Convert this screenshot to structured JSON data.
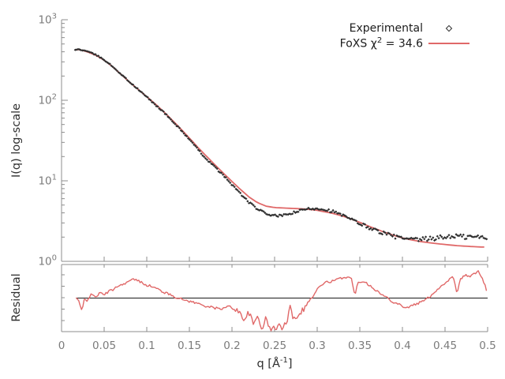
{
  "figure": {
    "background": "#ffffff",
    "axis_color": "#8c8c8c",
    "tick_label_color": "#7b7b7b",
    "reference_line_color": "#1a1a1a",
    "experimental_color": "#2e2e2e",
    "fit_color": "#e06868"
  },
  "legend": {
    "experimental": {
      "label": "Experimental",
      "marker": "diamond-icon"
    },
    "foxs": {
      "label_prefix": "FoXS χ",
      "label_sup": "2",
      "label_suffix": " = 34.6",
      "marker": "red-line-sample"
    }
  },
  "main_plot": {
    "ylabel": "I(q) log-scale",
    "ytick_labels": [
      {
        "base": "10",
        "exp": "3",
        "value": 1000
      },
      {
        "base": "10",
        "exp": "2",
        "value": 100
      },
      {
        "base": "10",
        "exp": "1",
        "value": 10
      },
      {
        "base": "10",
        "exp": "0",
        "value": 1
      }
    ]
  },
  "residual_plot": {
    "ylabel": "Residual",
    "reference_value": 1.0
  },
  "xaxis": {
    "label_prefix": "q [Å",
    "label_sup": "-1",
    "label_suffix": "]",
    "tick_labels": [
      "0",
      "0.05",
      "0.1",
      "0.15",
      "0.2",
      "0.25",
      "0.3",
      "0.35",
      "0.4",
      "0.45",
      "0.5"
    ]
  },
  "chart_data": {
    "type": "line",
    "xlabel": "q [Å⁻¹]",
    "xlim": [
      0,
      0.5
    ],
    "xticks": [
      0,
      0.05,
      0.1,
      0.15,
      0.2,
      0.25,
      0.3,
      0.35,
      0.4,
      0.45,
      0.5
    ],
    "grid": false,
    "legend_position": "top-right",
    "panels": [
      {
        "name": "main",
        "ylabel": "I(q) log-scale",
        "yscale": "log",
        "ylim": [
          1,
          1000
        ],
        "series": [
          {
            "name": "Experimental",
            "type": "scatter",
            "marker": "diamond",
            "color": "#2e2e2e",
            "x": [
              0.016,
              0.02,
              0.025,
              0.03,
              0.04,
              0.05,
              0.06,
              0.07,
              0.08,
              0.09,
              0.1,
              0.11,
              0.12,
              0.13,
              0.14,
              0.15,
              0.16,
              0.17,
              0.18,
              0.19,
              0.2,
              0.21,
              0.22,
              0.23,
              0.24,
              0.25,
              0.26,
              0.27,
              0.28,
              0.29,
              0.3,
              0.31,
              0.32,
              0.33,
              0.34,
              0.35,
              0.36,
              0.37,
              0.38,
              0.39,
              0.4,
              0.41,
              0.42,
              0.43,
              0.44,
              0.45,
              0.46,
              0.47,
              0.48,
              0.49,
              0.5
            ],
            "y": [
              420,
              430,
              418,
              405,
              368,
              318,
              262,
              210,
              168,
              136,
              110,
              88,
              71,
              55,
              43,
              32.5,
              24.5,
              18.6,
              14.8,
              11.6,
              9.0,
              6.9,
              5.4,
              4.45,
              3.9,
              3.68,
              3.7,
              3.95,
              4.25,
              4.5,
              4.55,
              4.4,
              4.1,
              3.7,
              3.3,
              2.95,
              2.65,
              2.4,
              2.2,
              2.05,
              1.92,
              1.85,
              1.86,
              1.9,
              1.95,
              2.0,
              2.08,
              2.02,
              2.0,
              2.0,
              1.95
            ]
          },
          {
            "name": "FoXS",
            "chi2": 34.6,
            "type": "line",
            "color": "#e06868",
            "x": [
              0.016,
              0.02,
              0.025,
              0.03,
              0.04,
              0.05,
              0.06,
              0.07,
              0.08,
              0.09,
              0.1,
              0.11,
              0.12,
              0.13,
              0.14,
              0.15,
              0.16,
              0.17,
              0.18,
              0.19,
              0.2,
              0.21,
              0.22,
              0.23,
              0.24,
              0.25,
              0.26,
              0.27,
              0.28,
              0.29,
              0.3,
              0.31,
              0.32,
              0.33,
              0.34,
              0.35,
              0.36,
              0.37,
              0.38,
              0.39,
              0.4,
              0.41,
              0.42,
              0.43,
              0.44,
              0.45,
              0.46,
              0.47,
              0.48,
              0.49,
              0.5
            ],
            "y": [
              424,
              426,
              415,
              400,
              363,
              315,
              260,
              209,
              167,
              136,
              111,
              90,
              72,
              56.5,
              44,
              34,
              26,
              20.2,
              15.8,
              12.4,
              9.8,
              7.8,
              6.3,
              5.35,
              4.85,
              4.65,
              4.6,
              4.55,
              4.5,
              4.42,
              4.3,
              4.1,
              3.9,
              3.65,
              3.35,
              3.05,
              2.75,
              2.5,
              2.28,
              2.1,
              1.95,
              1.85,
              1.77,
              1.71,
              1.66,
              1.62,
              1.58,
              1.55,
              1.53,
              1.51,
              1.5
            ]
          }
        ]
      },
      {
        "name": "residual",
        "ylabel": "Residual",
        "yscale": "log",
        "ylim": [
          0.316,
          3.16
        ],
        "reference_line": 1.0,
        "series": [
          {
            "name": "Residual",
            "type": "line",
            "color": "#e06868",
            "x": [
              0.018,
              0.021,
              0.024,
              0.027,
              0.03,
              0.035,
              0.04,
              0.045,
              0.05,
              0.055,
              0.06,
              0.065,
              0.07,
              0.075,
              0.08,
              0.085,
              0.09,
              0.095,
              0.1,
              0.105,
              0.11,
              0.115,
              0.12,
              0.125,
              0.13,
              0.135,
              0.14,
              0.15,
              0.16,
              0.17,
              0.18,
              0.19,
              0.196,
              0.2,
              0.205,
              0.21,
              0.215,
              0.22,
              0.225,
              0.23,
              0.235,
              0.24,
              0.245,
              0.25,
              0.255,
              0.26,
              0.265,
              0.268,
              0.272,
              0.276,
              0.28,
              0.285,
              0.29,
              0.295,
              0.3,
              0.305,
              0.31,
              0.315,
              0.32,
              0.325,
              0.33,
              0.335,
              0.34,
              0.344,
              0.348,
              0.355,
              0.36,
              0.365,
              0.37,
              0.375,
              0.38,
              0.385,
              0.39,
              0.395,
              0.4,
              0.405,
              0.41,
              0.415,
              0.42,
              0.425,
              0.43,
              0.435,
              0.44,
              0.445,
              0.45,
              0.455,
              0.46,
              0.464,
              0.468,
              0.475,
              0.48,
              0.485,
              0.49,
              0.495,
              0.5
            ],
            "y": [
              1.0,
              0.82,
              0.62,
              1.02,
              0.95,
              1.12,
              1.05,
              1.18,
              1.12,
              1.25,
              1.32,
              1.5,
              1.55,
              1.68,
              1.78,
              1.9,
              1.78,
              1.68,
              1.55,
              1.5,
              1.4,
              1.32,
              1.22,
              1.15,
              1.1,
              1.02,
              0.97,
              0.9,
              0.83,
              0.76,
              0.71,
              0.7,
              0.76,
              0.72,
              0.65,
              0.6,
              0.48,
              0.62,
              0.4,
              0.55,
              0.36,
              0.5,
              0.34,
              0.36,
              0.4,
              0.345,
              0.5,
              0.86,
              0.48,
              0.55,
              0.62,
              0.72,
              0.9,
              1.05,
              1.35,
              1.55,
              1.7,
              1.75,
              1.8,
              1.9,
              2.0,
              2.05,
              1.95,
              1.1,
              1.7,
              1.8,
              1.58,
              1.45,
              1.27,
              1.14,
              1.05,
              0.95,
              0.87,
              0.83,
              0.76,
              0.72,
              0.76,
              0.81,
              0.85,
              0.92,
              1.0,
              1.14,
              1.3,
              1.5,
              1.65,
              1.9,
              2.05,
              1.1,
              1.95,
              2.15,
              2.05,
              2.35,
              2.45,
              1.8,
              1.15
            ]
          }
        ]
      }
    ]
  }
}
